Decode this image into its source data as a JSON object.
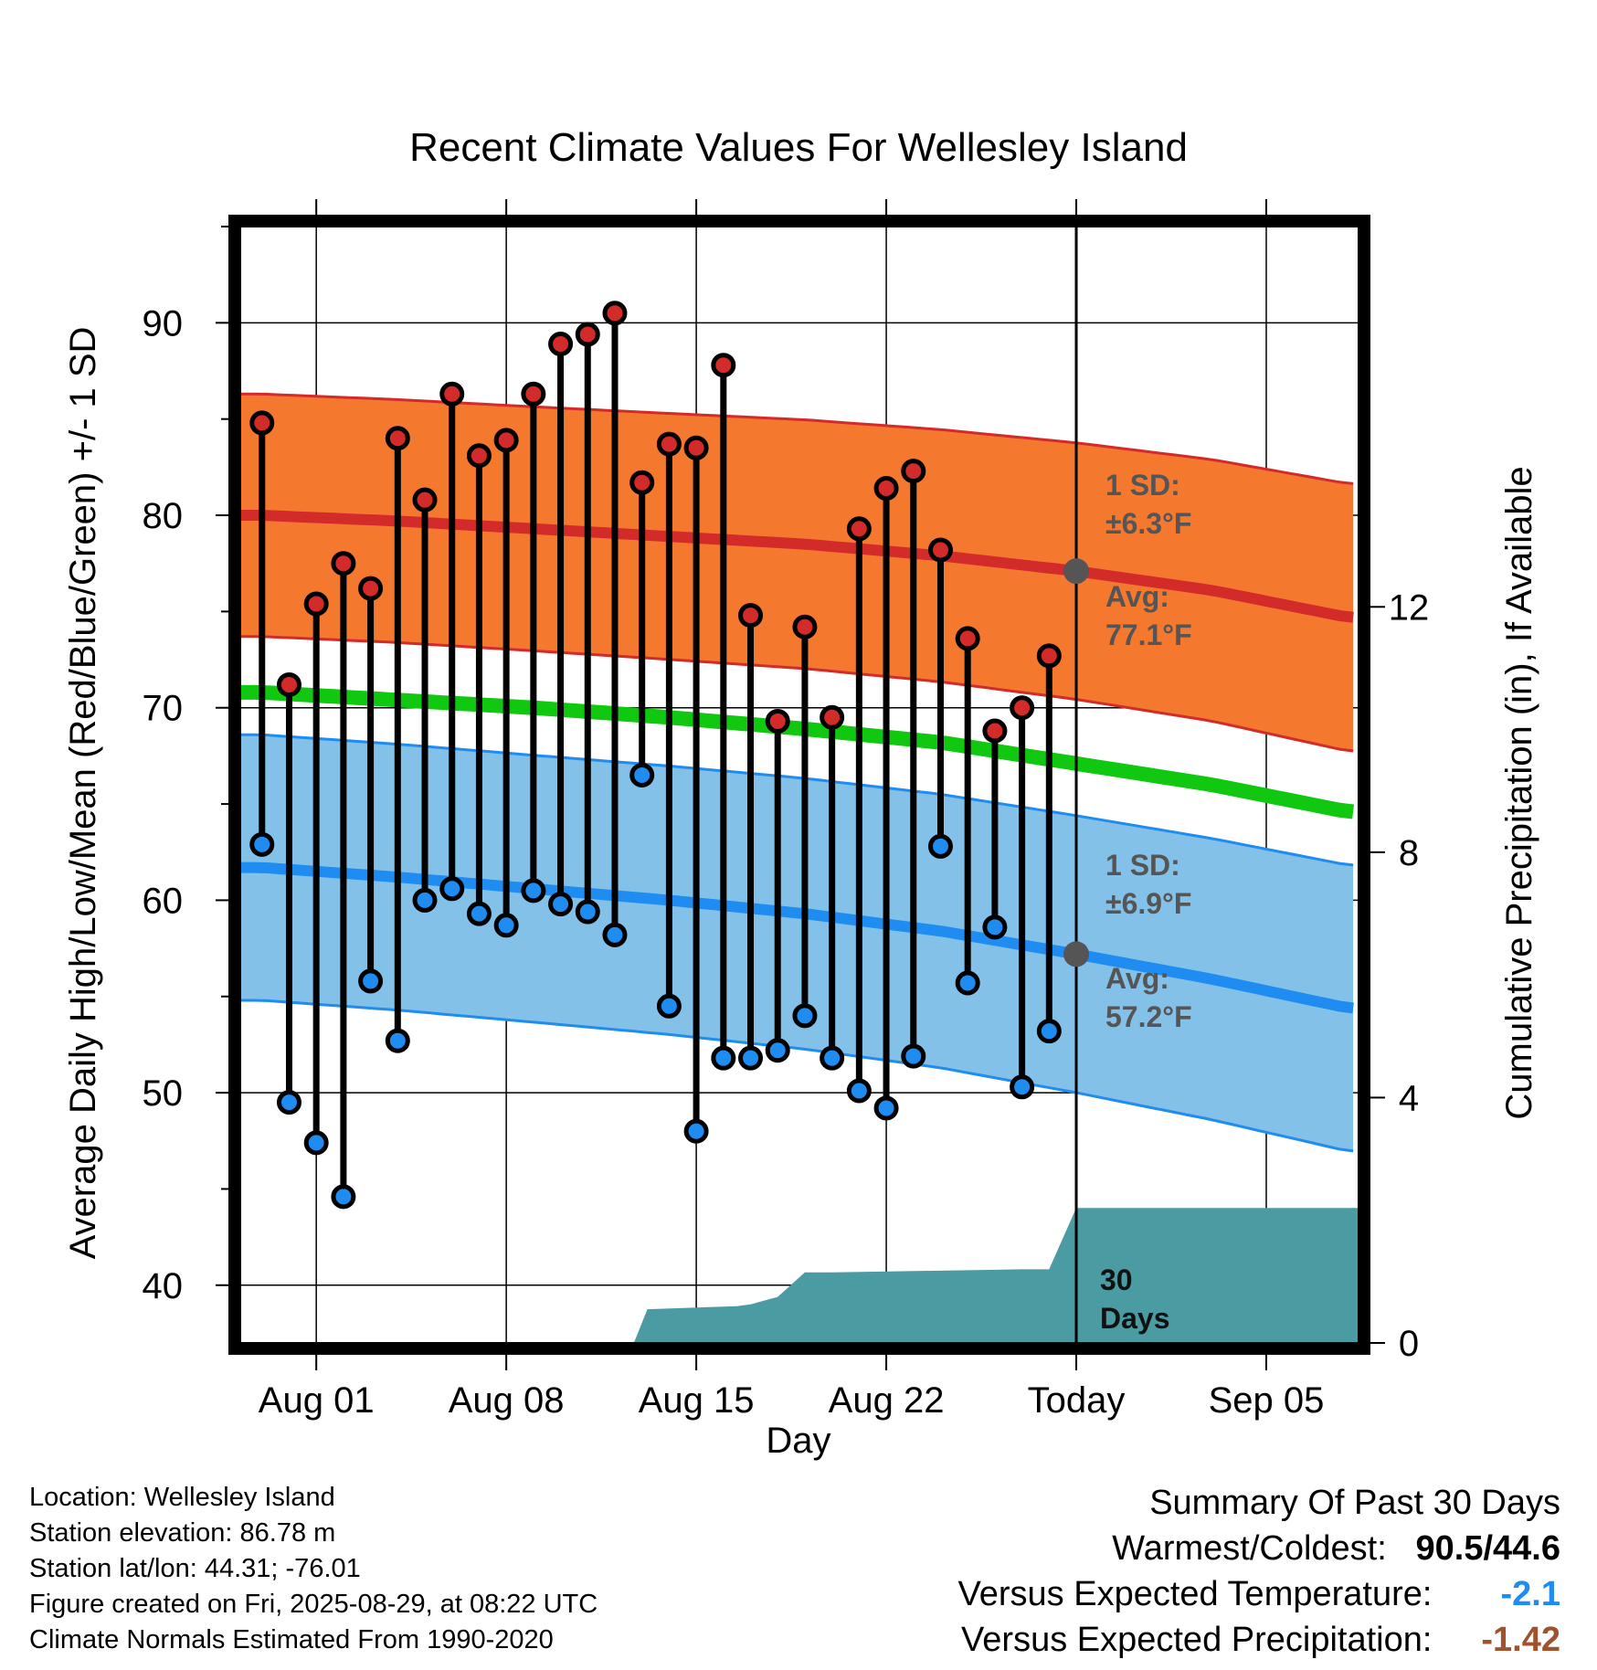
{
  "chart_data": {
    "type": "line",
    "title": "Recent Climate Values For Wellesley Island",
    "xlabel": "Day",
    "ylabel": "Average Daily High/Low/Mean (Red/Blue/Green) +/- 1 SD",
    "y2label": "Cumulative Precipitation (in), If Available",
    "ylim": [
      37,
      95
    ],
    "y2lim": [
      0,
      18.2
    ],
    "yticks": [
      40,
      50,
      60,
      70,
      80,
      90
    ],
    "y2ticks": [
      0,
      4,
      8,
      12
    ],
    "x_tick_days": [
      2,
      9,
      16,
      23,
      30,
      37
    ],
    "x_tick_labels": [
      "Aug 01",
      "Aug 08",
      "Aug 15",
      "Aug 22",
      "Today",
      "Sep 05"
    ],
    "xlim": [
      -0.8,
      40.4
    ],
    "today_day": 30,
    "grid": true,
    "observed_days": [
      0,
      1,
      2,
      3,
      4,
      5,
      6,
      7,
      8,
      9,
      10,
      11,
      12,
      13,
      14,
      15,
      16,
      17,
      18,
      19,
      20,
      21,
      22,
      23,
      24,
      25,
      26,
      27,
      28,
      29
    ],
    "observed_high": [
      84.8,
      71.2,
      75.4,
      77.5,
      76.2,
      84.0,
      80.8,
      86.3,
      83.1,
      83.9,
      86.3,
      88.9,
      89.4,
      90.5,
      81.7,
      83.7,
      83.5,
      87.8,
      74.8,
      69.3,
      74.2,
      69.5,
      79.3,
      81.4,
      82.3,
      78.2,
      73.6,
      68.8,
      70.0,
      72.7
    ],
    "observed_low": [
      62.9,
      49.5,
      47.4,
      44.6,
      55.8,
      52.7,
      60.0,
      60.6,
      59.3,
      58.7,
      60.5,
      59.8,
      59.4,
      58.2,
      66.5,
      54.5,
      48.0,
      51.8,
      51.8,
      52.2,
      54.0,
      51.8,
      50.1,
      49.2,
      51.9,
      62.8,
      55.7,
      58.6,
      50.3,
      53.2
    ],
    "normal_days": [
      0,
      5,
      10,
      15,
      20,
      25,
      30,
      35,
      40
    ],
    "normal_high": [
      80.0,
      79.7,
      79.3,
      78.9,
      78.5,
      77.9,
      77.1,
      76.1,
      74.7
    ],
    "normal_high_sd": 6.3,
    "normal_low": [
      61.7,
      61.2,
      60.6,
      60.0,
      59.3,
      58.4,
      57.2,
      55.9,
      54.4
    ],
    "normal_low_sd": 6.9,
    "normal_mean": [
      70.8,
      70.4,
      70.0,
      69.5,
      68.9,
      68.2,
      67.1,
      66.0,
      64.6
    ],
    "precip_days": [
      13.7,
      14.2,
      17.5,
      18,
      19,
      20,
      21,
      28,
      29,
      30,
      40.4
    ],
    "precip_cum": [
      0,
      0.55,
      0.6,
      0.63,
      0.75,
      1.15,
      1.15,
      1.2,
      1.2,
      2.2,
      2.2
    ],
    "annotations": {
      "high_sd_line1": "1 SD:",
      "high_sd_line2": "±6.3°F",
      "high_avg_line1": "Avg:",
      "high_avg_line2": "77.1°F",
      "low_sd_line1": "1 SD:",
      "low_sd_line2": "±6.9°F",
      "low_avg_line1": "Avg:",
      "low_avg_line2": "57.2°F",
      "precip_line1": "30",
      "precip_line2": "Days"
    },
    "colors": {
      "high_band": "#F5782F",
      "high_line": "#D32A2A",
      "low_band": "#84C1E9",
      "low_line": "#1E8CF0",
      "mean_line": "#10C810",
      "precip": "#4A9CA2",
      "high_dot": "#D32A2A",
      "low_dot": "#1E8CF0",
      "today_dot": "#555555"
    }
  },
  "info": {
    "location": "Location: Wellesley Island",
    "elevation": "Station elevation: 86.78 m",
    "latlon": "Station lat/lon: 44.31; -76.01",
    "created": "Figure created on Fri, 2025-08-29, at 08:22 UTC",
    "normals": "Climate Normals Estimated From 1990-2020"
  },
  "summary": {
    "title": "Summary Of Past 30 Days",
    "warmest_label": "Warmest/Coldest:",
    "warmest_high": "90.5",
    "separator": "/",
    "warmest_low": "44.6",
    "temp_label": "Versus Expected Temperature:",
    "temp_value": "-2.1",
    "temp_color": "#1E8CF0",
    "precip_label": "Versus Expected Precipitation:",
    "precip_value": "-1.42",
    "precip_color": "#A0522D"
  }
}
